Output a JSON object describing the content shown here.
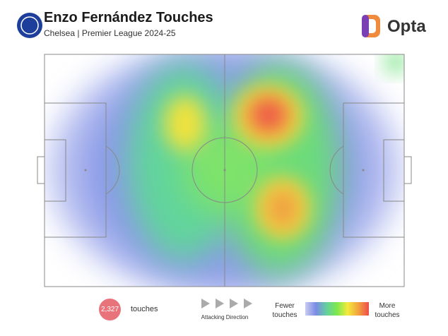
{
  "header": {
    "title": "Enzo Fernández Touches",
    "subtitle": "Chelsea | Premier League 2024-25",
    "brand": "Opta"
  },
  "footer": {
    "touch_count": "2,327",
    "touch_label": "touches",
    "direction_label": "Attacking Direction",
    "legend_low": "Fewer touches",
    "legend_high": "More touches"
  }
}
